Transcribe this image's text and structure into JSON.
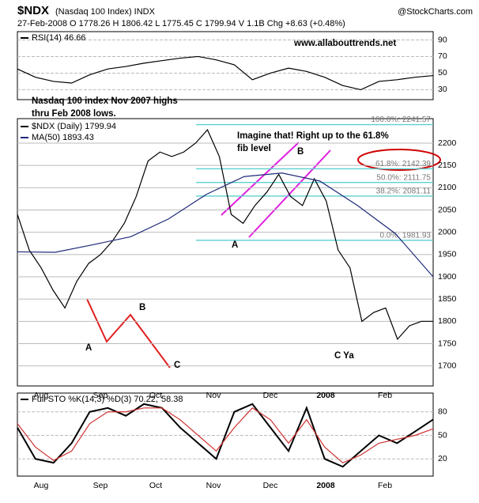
{
  "header": {
    "symbol": "$NDX",
    "name": "(Nasdaq 100 Index) INDX",
    "source": "@StockCharts.com",
    "quote": "27-Feb-2008   O 1778.26   H 1806.42   L 1775.45   C 1799.94   V 1.1B   Chg +8.63 (+0.48%)"
  },
  "chart_data": [
    {
      "type": "line",
      "title": "RSI(14) 46.66",
      "series": [
        {
          "color": "#000000",
          "values": [
            55,
            45,
            40,
            38,
            48,
            55,
            58,
            62,
            65,
            68,
            70,
            66,
            60,
            42,
            50,
            56,
            52,
            45,
            35,
            30,
            40,
            42,
            45,
            47
          ]
        }
      ],
      "ylim": [
        18,
        100
      ],
      "yticks": [
        90,
        70,
        50,
        30
      ],
      "grid": true,
      "annotations": [
        {
          "text": "www.allabouttrends.net",
          "color": "#0000cc"
        }
      ]
    },
    {
      "type": "line",
      "series": [
        {
          "name": "$NDX (Daily) 1799.94",
          "color": "#000000",
          "values": [
            2040,
            1960,
            1920,
            1870,
            1830,
            1890,
            1930,
            1950,
            1980,
            2020,
            2080,
            2160,
            2180,
            2170,
            2180,
            2200,
            2230,
            2170,
            2040,
            2020,
            2060,
            2090,
            2130,
            2080,
            2060,
            2120,
            2070,
            1960,
            1920,
            1800,
            1820,
            1830,
            1760,
            1790,
            1800,
            1800
          ]
        },
        {
          "name": "MA(50) 1893.43",
          "color": "#1f2a7a",
          "values": [
            1956,
            1955,
            1972,
            1990,
            2030,
            2085,
            2125,
            2133,
            2115,
            2060,
            1997,
            1900
          ]
        }
      ],
      "ylim": [
        1655,
        2255
      ],
      "yticks": [
        2200,
        2150,
        2100,
        2050,
        2000,
        1950,
        1900,
        1850,
        1800,
        1750,
        1700
      ],
      "grid": true,
      "x_labels": [
        "Aug",
        "Sep",
        "Oct",
        "Nov",
        "Dec",
        "2008",
        "Feb"
      ],
      "fib_levels": [
        {
          "value": 2241.57,
          "label": "100.0%: 2241.57"
        },
        {
          "value": 2142.39,
          "label": "61.8%: 2142.39"
        },
        {
          "value": 2111.75,
          "label": "50.0%: 2111.75"
        },
        {
          "value": 2081.11,
          "label": "38.2%: 2081.11"
        },
        {
          "value": 1981.93,
          "label": "0.0%: 1981.93"
        }
      ],
      "annotations": [
        {
          "text": "Nasdaq 100 index Nov 2007 highs",
          "color": "#0000cc"
        },
        {
          "text": "thru Feb 2008 lows.",
          "color": "#0000cc"
        },
        {
          "text": "Imagine that! Right up to the 61.8%",
          "color": "#0000cc"
        },
        {
          "text": "fib level",
          "color": "#0000cc"
        },
        {
          "text": "A",
          "color": "#cc0000"
        },
        {
          "text": "B",
          "color": "#cc0000"
        },
        {
          "text": "C Ya",
          "color": "#cc0000"
        },
        {
          "text": "A",
          "color": "#cc0000"
        },
        {
          "text": "B",
          "color": "#cc0000"
        },
        {
          "text": "C",
          "color": "#cc0000"
        }
      ]
    },
    {
      "type": "line",
      "title": "Full STO %K(14,3) %D(3) 70.22,",
      "title_tail": "58.38",
      "series": [
        {
          "color": "#000000",
          "values": [
            60,
            20,
            15,
            40,
            80,
            85,
            75,
            90,
            85,
            60,
            40,
            20,
            80,
            90,
            60,
            30,
            85,
            20,
            10,
            30,
            50,
            40,
            55,
            70.22
          ]
        },
        {
          "color": "#d03030",
          "values": [
            65,
            35,
            18,
            30,
            65,
            80,
            80,
            85,
            85,
            70,
            50,
            30,
            60,
            85,
            70,
            40,
            70,
            35,
            15,
            25,
            40,
            45,
            50,
            58.38
          ]
        }
      ],
      "ylim": [
        -2,
        104
      ],
      "yticks": [
        80,
        50,
        20
      ],
      "grid": true,
      "x_labels": [
        "Aug",
        "Sep",
        "Oct",
        "Nov",
        "Dec",
        "2008",
        "Feb"
      ]
    }
  ]
}
